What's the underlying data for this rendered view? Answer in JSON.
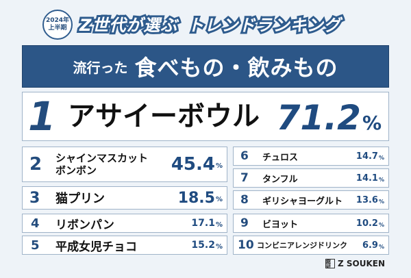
{
  "badge": {
    "year": "2024年",
    "half": "上半期"
  },
  "title": {
    "left": "Z世代が選ぶ",
    "right": "トレンドランキング"
  },
  "banner": {
    "small": "流行った",
    "big": "食べもの・飲みもの"
  },
  "first": {
    "rank": "1",
    "name": "アサイーボウル",
    "value": "71.2",
    "unit": "%"
  },
  "left_items": [
    {
      "rank": "2",
      "name_line1": "シャインマスカット",
      "name_line2": "ボンボン",
      "value": "45.4",
      "unit": "%"
    },
    {
      "rank": "3",
      "name": "猫プリン",
      "value": "18.5",
      "unit": "%"
    },
    {
      "rank": "4",
      "name": "リボンパン",
      "value": "17.1",
      "unit": "%"
    },
    {
      "rank": "5",
      "name": "平成女児チョコ",
      "value": "15.2",
      "unit": "%"
    }
  ],
  "right_items": [
    {
      "rank": "6",
      "name": "チュロス",
      "value": "14.7",
      "unit": "%"
    },
    {
      "rank": "7",
      "name": "タンフル",
      "value": "14.1",
      "unit": "%"
    },
    {
      "rank": "8",
      "name": "ギリシャヨーグルト",
      "value": "13.6",
      "unit": "%"
    },
    {
      "rank": "9",
      "name": "ビヨット",
      "value": "10.2",
      "unit": "%"
    },
    {
      "rank": "10",
      "name": "コンビニアレンジドリンク",
      "value": "6.9",
      "unit": "%"
    }
  ],
  "footer": {
    "logo_text": "Z SOUKEN",
    "logo_mark": "総研"
  }
}
